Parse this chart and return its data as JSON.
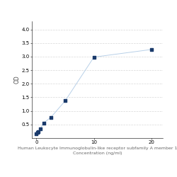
{
  "x": [
    0,
    0.156,
    0.313,
    0.625,
    1.25,
    2.5,
    5,
    10,
    20
  ],
  "y": [
    0.152,
    0.197,
    0.235,
    0.332,
    0.558,
    0.76,
    1.37,
    2.98,
    3.26
  ],
  "xlabel_line1": "Human Leukocyte Immunoglobulin-like receptor subfamily A member 1",
  "xlabel_line2": "Concentration (ng/ml)",
  "ylabel": "OD",
  "xlim": [
    -0.8,
    22
  ],
  "ylim": [
    0.0,
    4.3
  ],
  "yticks": [
    0.5,
    1.0,
    1.5,
    2.0,
    2.5,
    3.0,
    3.5,
    4.0
  ],
  "xticks": [
    0,
    10,
    20
  ],
  "line_color": "#b8d0e8",
  "marker_color": "#1a3a6b",
  "marker_size": 3.5,
  "grid_color": "#d8d8d8",
  "bg_color": "#ffffff",
  "font_size_label": 4.5,
  "font_size_tick": 5.0,
  "font_size_ylabel": 5.5
}
